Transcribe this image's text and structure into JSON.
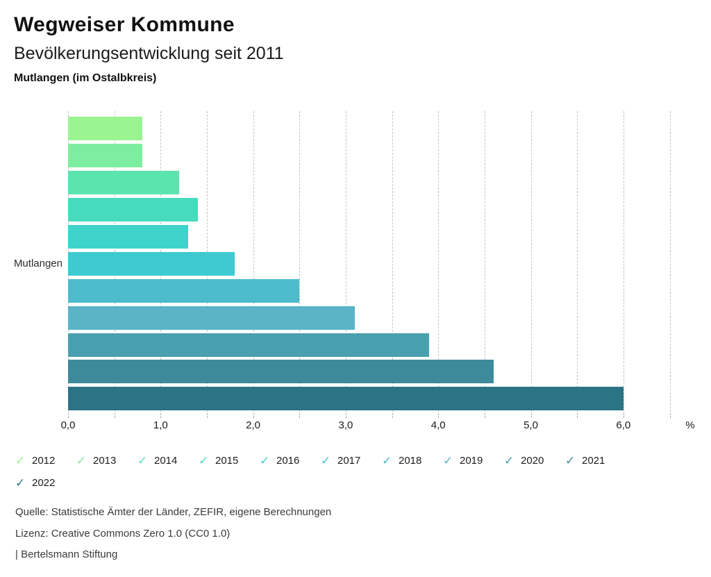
{
  "header": {
    "title": "Wegweiser Kommune",
    "subtitle": "Bevölkerungsentwicklung seit 2011",
    "region": "Mutlangen (im Ostalbkreis)"
  },
  "chart_data": {
    "type": "bar",
    "orientation": "horizontal",
    "title": "Bevölkerungsentwicklung seit 2011",
    "row_label": "Mutlangen",
    "unit_label": "%",
    "categories": [
      "2012",
      "2013",
      "2014",
      "2015",
      "2016",
      "2017",
      "2018",
      "2019",
      "2020",
      "2021",
      "2022"
    ],
    "values": [
      0.8,
      0.8,
      1.2,
      1.4,
      1.3,
      1.8,
      2.5,
      3.1,
      3.9,
      4.6,
      6.0
    ],
    "series_colors": [
      "#9AF492",
      "#7DEDA0",
      "#5CE4AE",
      "#47DBBD",
      "#3FD4CB",
      "#3FCAD1",
      "#4CBCCD",
      "#5AB4C6",
      "#49A0AE",
      "#3D8B9A",
      "#2B7486"
    ],
    "x_tick_labels": [
      "0,0",
      "1,0",
      "2,0",
      "3,0",
      "4,0",
      "5,0",
      "6,0"
    ],
    "x_tick_values": [
      0,
      1,
      2,
      3,
      4,
      5,
      6
    ],
    "xlim": [
      0,
      6.5
    ],
    "gridline_step": 0.5,
    "grid": "vertical-dashed",
    "legend_position": "bottom"
  },
  "legend": {
    "check_icon": "✓",
    "labels": [
      "2012",
      "2013",
      "2014",
      "2015",
      "2016",
      "2017",
      "2018",
      "2019",
      "2020",
      "2021",
      "2022"
    ]
  },
  "footer": {
    "source": "Quelle: Statistische Ämter der Länder, ZEFIR, eigene Berechnungen",
    "license": "Lizenz: Creative Commons Zero 1.0 (CC0 1.0)",
    "attribution": "| Bertelsmann Stiftung"
  }
}
